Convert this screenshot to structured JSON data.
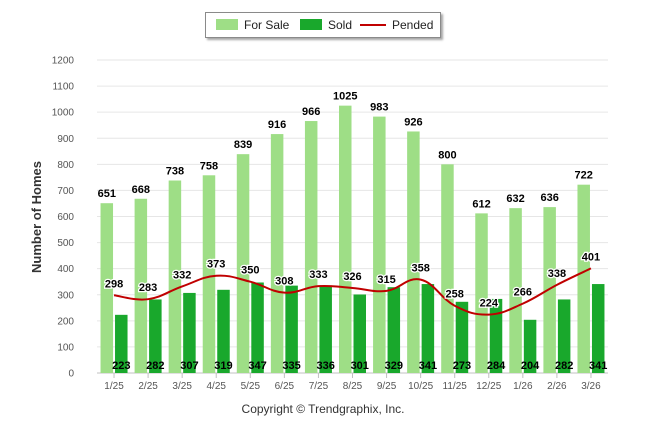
{
  "chart_data": {
    "type": "bar",
    "title": "",
    "xlabel": "",
    "ylabel": "Number of Homes",
    "ylim": [
      0,
      1200
    ],
    "yticks": [
      0,
      100,
      200,
      300,
      400,
      500,
      600,
      700,
      800,
      900,
      1000,
      1100,
      1200
    ],
    "categories": [
      "1/25",
      "2/25",
      "3/25",
      "4/25",
      "5/25",
      "6/25",
      "7/25",
      "8/25",
      "9/25",
      "10/25",
      "11/25",
      "12/25",
      "1/26",
      "2/26",
      "3/26"
    ],
    "series": [
      {
        "name": "For Sale",
        "kind": "bar",
        "color": "#9ede86",
        "values": [
          651,
          668,
          738,
          758,
          839,
          916,
          966,
          1025,
          983,
          926,
          800,
          612,
          632,
          636,
          722
        ]
      },
      {
        "name": "Sold",
        "kind": "bar",
        "color": "#19a82c",
        "values": [
          223,
          282,
          307,
          319,
          347,
          335,
          336,
          301,
          329,
          341,
          273,
          284,
          204,
          282,
          341
        ]
      },
      {
        "name": "Pended",
        "kind": "line",
        "color": "#c00000",
        "values": [
          298,
          283,
          332,
          373,
          350,
          308,
          333,
          326,
          315,
          358,
          258,
          224,
          266,
          338,
          401
        ]
      }
    ],
    "legend_position": "top-center",
    "grid": true
  },
  "footer": {
    "copyright": "Copyright © Trendgraphix, Inc."
  }
}
